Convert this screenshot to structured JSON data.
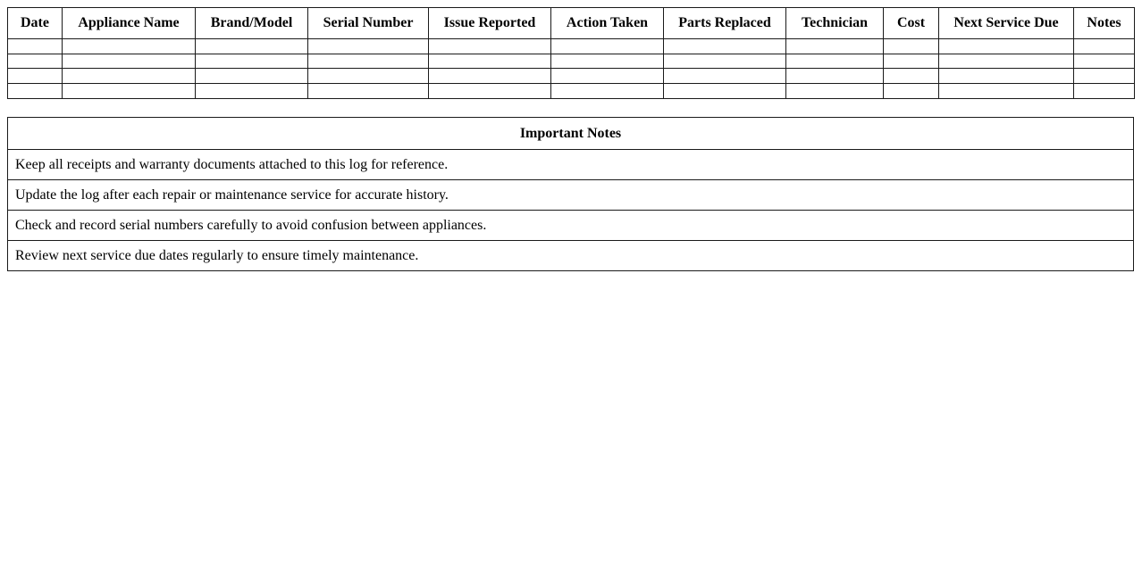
{
  "colors": {
    "background": "#ffffff",
    "border": "#1a1a1a",
    "text": "#000000"
  },
  "log_table": {
    "columns": [
      "Date",
      "Appliance Name",
      "Brand/Model",
      "Serial Number",
      "Issue Reported",
      "Action Taken",
      "Parts Replaced",
      "Technician",
      "Cost",
      "Next Service Due",
      "Notes"
    ],
    "empty_rows": 4
  },
  "notes_table": {
    "title": "Important Notes",
    "notes": [
      "Keep all receipts and warranty documents attached to this log for reference.",
      "Update the log after each repair or maintenance service for accurate history.",
      "Check and record serial numbers carefully to avoid confusion between appliances.",
      "Review next service due dates regularly to ensure timely maintenance."
    ]
  }
}
